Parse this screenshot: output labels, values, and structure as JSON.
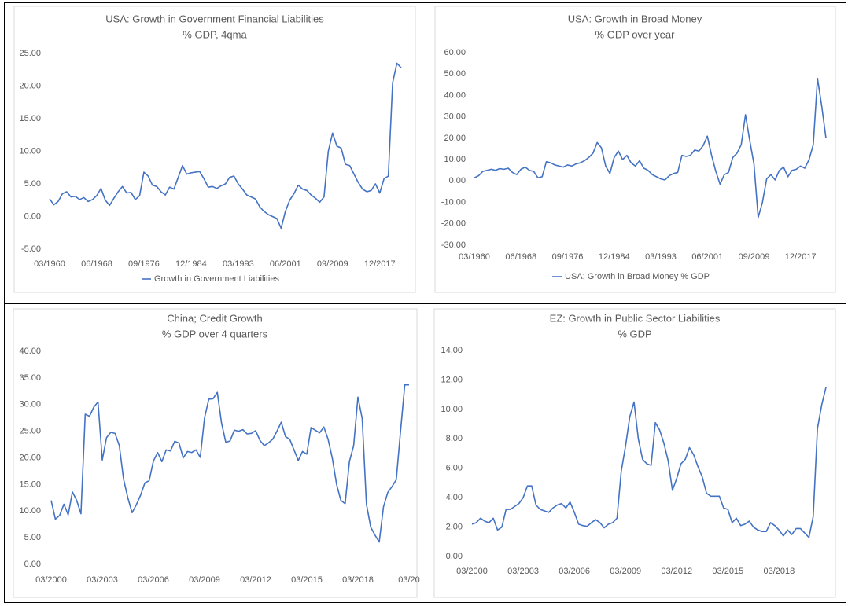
{
  "chart_data": [
    {
      "type": "line",
      "title": "USA: Growth in Government Financial Liabilities",
      "subtitle": "% GDP, 4qma",
      "categories": [
        "03/1960",
        null,
        null,
        null,
        null,
        null,
        null,
        null,
        null,
        null,
        null,
        "06/1968",
        null,
        null,
        null,
        null,
        null,
        null,
        null,
        null,
        null,
        null,
        "09/1976",
        null,
        null,
        null,
        null,
        null,
        null,
        null,
        null,
        null,
        null,
        "12/1984",
        null,
        null,
        null,
        null,
        null,
        null,
        null,
        null,
        null,
        null,
        "03/1993",
        null,
        null,
        null,
        null,
        null,
        null,
        null,
        null,
        null,
        null,
        "06/2001",
        null,
        null,
        null,
        null,
        null,
        null,
        null,
        null,
        null,
        null,
        "09/2009",
        null,
        null,
        null,
        null,
        null,
        null,
        null,
        null,
        null,
        null,
        "12/2017",
        null,
        null,
        null,
        null,
        null
      ],
      "series": [
        {
          "name": "Growth in Government Liabilities",
          "color": "#4472c4",
          "values": [
            2.7,
            1.8,
            2.3,
            3.5,
            3.8,
            3.0,
            3.1,
            2.6,
            2.9,
            2.3,
            2.6,
            3.2,
            4.3,
            2.5,
            1.7,
            2.8,
            3.8,
            4.6,
            3.6,
            3.7,
            2.6,
            3.2,
            6.8,
            6.2,
            4.8,
            4.6,
            3.8,
            3.3,
            4.5,
            4.2,
            6.0,
            7.8,
            6.5,
            6.7,
            6.8,
            6.9,
            5.8,
            4.5,
            4.6,
            4.3,
            4.7,
            5.0,
            6.0,
            6.2,
            5.0,
            4.2,
            3.3,
            3.0,
            2.7,
            1.5,
            0.8,
            0.3,
            0.0,
            -0.3,
            -1.8,
            0.8,
            2.5,
            3.5,
            4.8,
            4.2,
            4.0,
            3.3,
            2.8,
            2.2,
            3.0,
            10.0,
            12.8,
            10.8,
            10.5,
            8.0,
            7.8,
            6.5,
            5.2,
            4.2,
            3.8,
            4.0,
            5.0,
            3.6,
            5.8,
            6.2,
            20.5,
            23.5,
            22.8
          ]
        }
      ],
      "ylim": [
        -5,
        25
      ],
      "yticks": [
        {
          "value": -5,
          "label": "-5.00"
        },
        {
          "value": 0,
          "label": "0.00"
        },
        {
          "value": 5,
          "label": "5.00"
        },
        {
          "value": 10,
          "label": "10.00"
        },
        {
          "value": 15,
          "label": "15.00"
        },
        {
          "value": 20,
          "label": "20.00"
        },
        {
          "value": 25,
          "label": "25.00"
        }
      ],
      "grid": false,
      "legend": "bottom"
    },
    {
      "type": "line",
      "title": "USA: Growth in Broad Money",
      "subtitle": "% GDP over year",
      "categories": [
        "03/1960",
        null,
        null,
        null,
        null,
        null,
        null,
        null,
        null,
        null,
        null,
        "06/1968",
        null,
        null,
        null,
        null,
        null,
        null,
        null,
        null,
        null,
        null,
        "09/1976",
        null,
        null,
        null,
        null,
        null,
        null,
        null,
        null,
        null,
        null,
        "12/1984",
        null,
        null,
        null,
        null,
        null,
        null,
        null,
        null,
        null,
        null,
        "03/1993",
        null,
        null,
        null,
        null,
        null,
        null,
        null,
        null,
        null,
        null,
        "06/2001",
        null,
        null,
        null,
        null,
        null,
        null,
        null,
        null,
        null,
        null,
        "09/2009",
        null,
        null,
        null,
        null,
        null,
        null,
        null,
        null,
        null,
        null,
        "12/2017",
        null,
        null,
        null,
        null,
        null,
        null
      ],
      "series": [
        {
          "name": "USA: Growth in Broad Money % GDP",
          "color": "#4472c4",
          "values": [
            1.5,
            2.5,
            4.5,
            5.0,
            5.5,
            5.0,
            5.8,
            5.5,
            6.0,
            4.0,
            3.0,
            5.5,
            6.5,
            5.0,
            4.5,
            1.5,
            2.0,
            9.0,
            8.5,
            7.5,
            7.0,
            6.5,
            7.5,
            7.0,
            8.0,
            8.5,
            9.5,
            11.0,
            13.0,
            18.0,
            15.5,
            7.0,
            3.5,
            11.0,
            14.0,
            10.0,
            12.0,
            8.5,
            7.0,
            9.5,
            6.0,
            5.0,
            3.0,
            2.0,
            1.0,
            0.5,
            2.5,
            3.5,
            4.0,
            12.0,
            11.5,
            12.0,
            14.5,
            14.0,
            16.5,
            21.0,
            12.0,
            4.5,
            -1.5,
            3.0,
            4.0,
            11.0,
            13.0,
            17.0,
            31.0,
            19.0,
            8.0,
            -17.0,
            -10.0,
            1.0,
            3.0,
            0.5,
            5.0,
            6.5,
            2.0,
            5.0,
            5.5,
            7.0,
            6.0,
            10.0,
            17.0,
            48.0,
            35.0,
            20.0
          ]
        }
      ],
      "ylim": [
        -30,
        60
      ],
      "yticks": [
        {
          "value": -30,
          "label": "-30.00"
        },
        {
          "value": -20,
          "label": "-20.00"
        },
        {
          "value": -10,
          "label": "-10.00"
        },
        {
          "value": 0,
          "label": "0.00"
        },
        {
          "value": 10,
          "label": "10.00"
        },
        {
          "value": 20,
          "label": "20.00"
        },
        {
          "value": 30,
          "label": "30.00"
        },
        {
          "value": 40,
          "label": "40.00"
        },
        {
          "value": 50,
          "label": "50.00"
        },
        {
          "value": 60,
          "label": "60.00"
        }
      ],
      "grid": false,
      "legend": "bottom"
    },
    {
      "type": "line",
      "title": "China; Credit Growth",
      "subtitle": "% GDP over 4 quarters",
      "categories": [
        "03/2000",
        null,
        null,
        null,
        null,
        null,
        null,
        null,
        null,
        null,
        null,
        null,
        "03/2003",
        null,
        null,
        null,
        null,
        null,
        null,
        null,
        null,
        null,
        null,
        null,
        "03/2006",
        null,
        null,
        null,
        null,
        null,
        null,
        null,
        null,
        null,
        null,
        null,
        "03/2009",
        null,
        null,
        null,
        null,
        null,
        null,
        null,
        null,
        null,
        null,
        null,
        "03/2012",
        null,
        null,
        null,
        null,
        null,
        null,
        null,
        null,
        null,
        null,
        null,
        "03/2015",
        null,
        null,
        null,
        null,
        null,
        null,
        null,
        null,
        null,
        null,
        null,
        "03/2018",
        null,
        null,
        null,
        null,
        null,
        null,
        null,
        null,
        null,
        null,
        null,
        "03/20"
      ],
      "series": [
        {
          "color": "#4472c4",
          "values": [
            12,
            8.5,
            9.2,
            11.3,
            9.3,
            13.6,
            12,
            9.5,
            28.2,
            27.8,
            29.5,
            30.5,
            19.6,
            23.8,
            24.8,
            24.6,
            22.3,
            16,
            12.5,
            9.7,
            11.2,
            13,
            15.3,
            15.7,
            19.4,
            21,
            19.3,
            21.5,
            21.3,
            23.1,
            22.8,
            20,
            21.2,
            21,
            21.5,
            20.1,
            27.5,
            31,
            31.1,
            32.3,
            26.5,
            22.9,
            23.2,
            25.2,
            25,
            25.3,
            24.5,
            24.6,
            25.1,
            23.3,
            22.3,
            22.8,
            23.5,
            25,
            26.7,
            24,
            23.5,
            21.5,
            19.5,
            21.2,
            20.7,
            25.7,
            25.2,
            24.7,
            25.8,
            23.5,
            19.9,
            15,
            12,
            11.4,
            19.3,
            22.3,
            31.4,
            27.4,
            11.3,
            7,
            5.5,
            4.2,
            10.8,
            13.5,
            14.6,
            15.9,
            25,
            33.7,
            33.7
          ]
        }
      ],
      "ylim": [
        0,
        40
      ],
      "yticks": [
        {
          "value": 0,
          "label": "0.00"
        },
        {
          "value": 5,
          "label": "5.00"
        },
        {
          "value": 10,
          "label": "10.00"
        },
        {
          "value": 15,
          "label": "15.00"
        },
        {
          "value": 20,
          "label": "20.00"
        },
        {
          "value": 25,
          "label": "25.00"
        },
        {
          "value": 30,
          "label": "30.00"
        },
        {
          "value": 35,
          "label": "35.00"
        },
        {
          "value": 40,
          "label": "40.00"
        }
      ],
      "grid": false
    },
    {
      "type": "line",
      "title": "EZ: Growth in Public Sector Liabilities",
      "subtitle": "% GDP",
      "categories": [
        "03/2000",
        null,
        null,
        null,
        null,
        null,
        null,
        null,
        null,
        null,
        null,
        null,
        "03/2003",
        null,
        null,
        null,
        null,
        null,
        null,
        null,
        null,
        null,
        null,
        null,
        "03/2006",
        null,
        null,
        null,
        null,
        null,
        null,
        null,
        null,
        null,
        null,
        null,
        "03/2009",
        null,
        null,
        null,
        null,
        null,
        null,
        null,
        null,
        null,
        null,
        null,
        "03/2012",
        null,
        null,
        null,
        null,
        null,
        null,
        null,
        null,
        null,
        null,
        null,
        "03/2015",
        null,
        null,
        null,
        null,
        null,
        null,
        null,
        null,
        null,
        null,
        null,
        "03/2018",
        null,
        null,
        null,
        null,
        null,
        null,
        null,
        null,
        null,
        null,
        null
      ],
      "series": [
        {
          "color": "#4472c4",
          "values": [
            2.2,
            2.3,
            2.6,
            2.4,
            2.3,
            2.6,
            1.8,
            2.0,
            3.2,
            3.2,
            3.4,
            3.6,
            4.0,
            4.8,
            4.8,
            3.5,
            3.2,
            3.1,
            3.0,
            3.3,
            3.5,
            3.6,
            3.3,
            3.7,
            3.0,
            2.2,
            2.1,
            2.05,
            2.3,
            2.5,
            2.3,
            1.95,
            2.2,
            2.3,
            2.6,
            5.8,
            7.5,
            9.5,
            10.5,
            8.0,
            6.6,
            6.3,
            6.2,
            9.1,
            8.6,
            7.7,
            6.5,
            4.5,
            5.3,
            6.3,
            6.6,
            7.4,
            6.9,
            6.1,
            5.4,
            4.3,
            4.1,
            4.1,
            4.1,
            3.3,
            3.2,
            2.3,
            2.6,
            2.1,
            2.2,
            2.4,
            2.0,
            1.8,
            1.7,
            1.7,
            2.3,
            2.1,
            1.8,
            1.4,
            1.8,
            1.5,
            1.9,
            1.9,
            1.6,
            1.3,
            2.7,
            8.7,
            10.3,
            11.5
          ]
        }
      ],
      "ylim": [
        0,
        14
      ],
      "yticks": [
        {
          "value": 0,
          "label": "0.00"
        },
        {
          "value": 2,
          "label": "2.00"
        },
        {
          "value": 4,
          "label": "4.00"
        },
        {
          "value": 6,
          "label": "6.00"
        },
        {
          "value": 8,
          "label": "8.00"
        },
        {
          "value": 10,
          "label": "10.00"
        },
        {
          "value": 12,
          "label": "12.00"
        },
        {
          "value": 14,
          "label": "14.00"
        }
      ],
      "grid": false
    }
  ]
}
